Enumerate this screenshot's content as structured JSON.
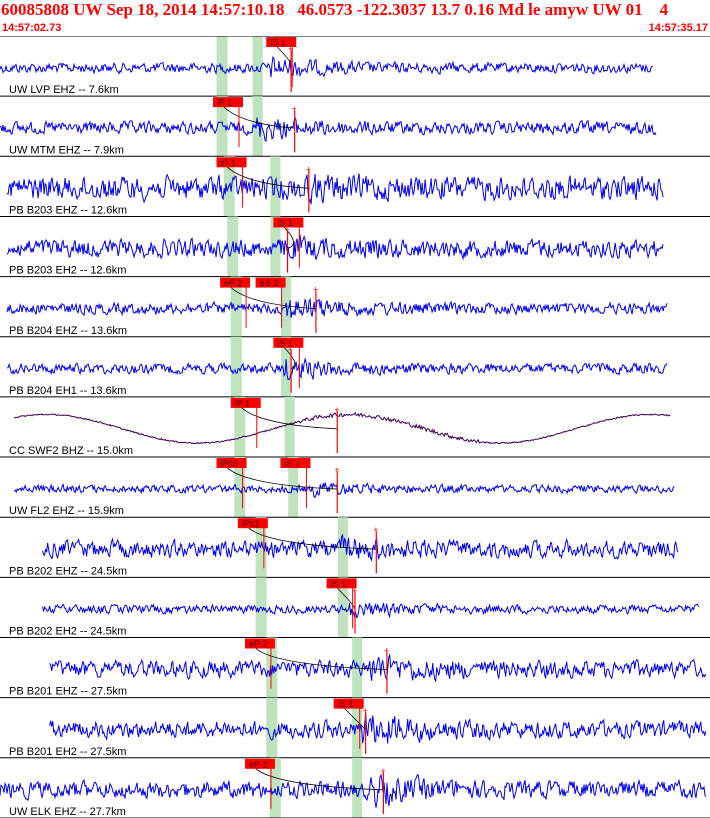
{
  "header": {
    "title": "60085808 UW Sep 18, 2014 14:57:10.18   46.0573 -122.3037 13.7 0.16 Md le amyw UW 01    4",
    "time_start": "14:57:02.73",
    "time_end": "14:57:35.17"
  },
  "colors": {
    "trace": "#0000ee",
    "trace_lp": "#3a0050",
    "pick": "#ff0000",
    "pick_band": "#bfe3bf",
    "separator": "#000000",
    "curve": "#000000"
  },
  "chart_data": {
    "type": "seismogram",
    "time_window": [
      "14:57:02.73",
      "14:57:35.17"
    ],
    "traces": [
      {
        "label": "UW LVP EHZ -- 7.6km",
        "x_start": 0.0,
        "x_end": 0.92,
        "amp": 0.18,
        "kind": "hf",
        "onset": 0.38,
        "burst": 2.6,
        "picks": [
          {
            "label": "iS 1",
            "x": 0.375
          }
        ],
        "band": [
          0.305,
          0.37
        ],
        "line_x": 0.41
      },
      {
        "label": "UW MTM EHZ -- 7.9km",
        "x_start": 0.0,
        "x_end": 0.925,
        "amp": 0.22,
        "kind": "hf",
        "onset": 0.36,
        "burst": 2.4,
        "picks": [
          {
            "label": "iP 1",
            "x": 0.3
          }
        ],
        "band": [
          0.305,
          0.37
        ],
        "line_x": 0.415
      },
      {
        "label": "PB B203 EHZ -- 12.6km",
        "x_start": 0.01,
        "x_end": 0.935,
        "amp": 0.42,
        "kind": "hf",
        "onset": 0.42,
        "burst": 1.4,
        "picks": [
          {
            "label": "iP 1",
            "x": 0.305
          }
        ],
        "band": [
          0.315,
          0.395
        ],
        "line_x": 0.435
      },
      {
        "label": "PB B203 EH2 -- 12.6km",
        "x_start": 0.01,
        "x_end": 0.935,
        "amp": 0.32,
        "kind": "hf",
        "onset": 0.395,
        "burst": 1.6,
        "picks": [
          {
            "label": "iS 1",
            "x": 0.385
          }
        ],
        "band": [
          0.32,
          0.395
        ],
        "line_x": 0.405
      },
      {
        "label": "PB B204 EHZ -- 13.6km",
        "x_start": 0.01,
        "x_end": 0.94,
        "amp": 0.2,
        "kind": "hf",
        "onset": 0.4,
        "burst": 2.8,
        "picks": [
          {
            "label": "eP 2",
            "x": 0.31
          },
          {
            "label": "eS 2",
            "x": 0.36
          }
        ],
        "band": [
          0.325,
          0.41
        ],
        "line_x": 0.445
      },
      {
        "label": "PB B204 EH1 -- 13.6km",
        "x_start": 0.01,
        "x_end": 0.94,
        "amp": 0.18,
        "kind": "hf",
        "onset": 0.4,
        "burst": 2.8,
        "picks": [
          {
            "label": "iS 1",
            "x": 0.385
          }
        ],
        "band": [
          0.325,
          0.41
        ],
        "line_x": 0.41
      },
      {
        "label": "CC SWF2 BHZ -- 15.0km",
        "x_start": 0.02,
        "x_end": 0.945,
        "amp": 0.42,
        "kind": "lp",
        "onset": 0.45,
        "burst": 1.2,
        "picks": [
          {
            "label": "iP 1",
            "x": 0.325
          }
        ],
        "band": [
          0.33,
          0.415
        ],
        "line_x": 0.475
      },
      {
        "label": "UW FL2 EHZ -- 15.9km",
        "x_start": 0.02,
        "x_end": 0.95,
        "amp": 0.14,
        "kind": "hf",
        "onset": 0.44,
        "burst": 2.4,
        "picks": [
          {
            "label": "iPc0",
            "x": 0.305
          },
          {
            "label": "iS 1",
            "x": 0.395
          }
        ],
        "band": [
          0.33,
          0.42
        ],
        "line_x": 0.475
      },
      {
        "label": "PB B202 EHZ -- 24.5km",
        "x_start": 0.06,
        "x_end": 0.955,
        "amp": 0.3,
        "kind": "hf",
        "onset": 0.48,
        "burst": 1.7,
        "picks": [
          {
            "label": "iPc1",
            "x": 0.335
          }
        ],
        "band": [
          0.36,
          0.49
        ],
        "line_x": 0.53
      },
      {
        "label": "PB B202 EH2 -- 24.5km",
        "x_start": 0.06,
        "x_end": 0.985,
        "amp": 0.15,
        "kind": "hf",
        "onset": 0.49,
        "burst": 2.4,
        "picks": [
          {
            "label": "iS 1",
            "x": 0.46
          }
        ],
        "band": [
          0.36,
          0.49
        ],
        "line_x": 0.5
      },
      {
        "label": "PB B201 EHZ -- 27.5km",
        "x_start": 0.07,
        "x_end": 0.995,
        "amp": 0.3,
        "kind": "hf",
        "onset": 0.52,
        "burst": 2.0,
        "picks": [
          {
            "label": "eP 2",
            "x": 0.345
          }
        ],
        "band": [
          0.375,
          0.51
        ],
        "line_x": 0.545
      },
      {
        "label": "PB B201 EH2 -- 27.5km",
        "x_start": 0.07,
        "x_end": 0.995,
        "amp": 0.3,
        "kind": "hf",
        "onset": 0.51,
        "burst": 2.4,
        "picks": [
          {
            "label": "iS 1",
            "x": 0.47
          }
        ],
        "band": [
          0.375,
          0.51
        ],
        "line_x": 0.515
      },
      {
        "label": "UW ELK EHZ -- 27.7km",
        "x_start": 0.0,
        "x_end": 0.995,
        "amp": 0.3,
        "kind": "hf",
        "onset": 0.52,
        "burst": 2.2,
        "picks": [
          {
            "label": "eP 2",
            "x": 0.345
          }
        ],
        "band": [
          0.38,
          0.51
        ],
        "line_x": 0.54
      }
    ]
  }
}
